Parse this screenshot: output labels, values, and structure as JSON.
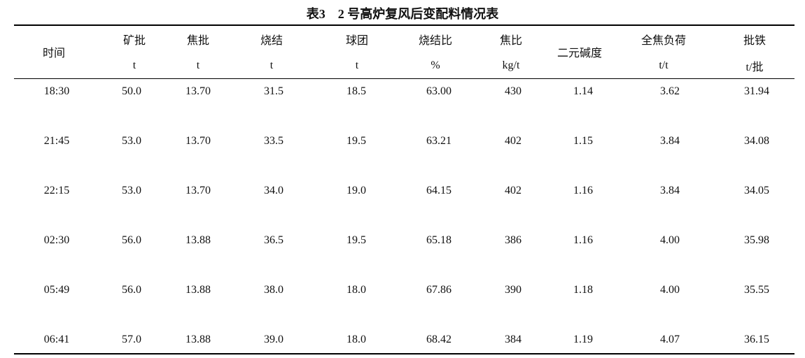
{
  "title": "表3　2 号高炉复风后变配料情况表",
  "table": {
    "columns": [
      {
        "name": "时间"
      },
      {
        "name": "矿批",
        "unit": "t"
      },
      {
        "name": "焦批",
        "unit": "t"
      },
      {
        "name": "烧结",
        "unit": "t"
      },
      {
        "name": "球团",
        "unit": "t"
      },
      {
        "name": "烧结比",
        "unit": "%"
      },
      {
        "name": "焦比",
        "unit": "kg/t"
      },
      {
        "name": "二元碱度"
      },
      {
        "name": "全焦负荷",
        "unit": "t/t"
      },
      {
        "name": "批铁",
        "unit": "t/批"
      }
    ],
    "rows": [
      [
        "18:30",
        "50.0",
        "13.70",
        "31.5",
        "18.5",
        "63.00",
        "430",
        "1.14",
        "3.62",
        "31.94"
      ],
      [
        "21:45",
        "53.0",
        "13.70",
        "33.5",
        "19.5",
        "63.21",
        "402",
        "1.15",
        "3.84",
        "34.08"
      ],
      [
        "22:15",
        "53.0",
        "13.70",
        "34.0",
        "19.0",
        "64.15",
        "402",
        "1.16",
        "3.84",
        "34.05"
      ],
      [
        "02:30",
        "56.0",
        "13.88",
        "36.5",
        "19.5",
        "65.18",
        "386",
        "1.16",
        "4.00",
        "35.98"
      ],
      [
        "05:49",
        "56.0",
        "13.88",
        "38.0",
        "18.0",
        "67.86",
        "390",
        "1.18",
        "4.00",
        "35.55"
      ],
      [
        "06:41",
        "57.0",
        "13.88",
        "39.0",
        "18.0",
        "68.42",
        "384",
        "1.19",
        "4.07",
        "36.15"
      ]
    ]
  }
}
